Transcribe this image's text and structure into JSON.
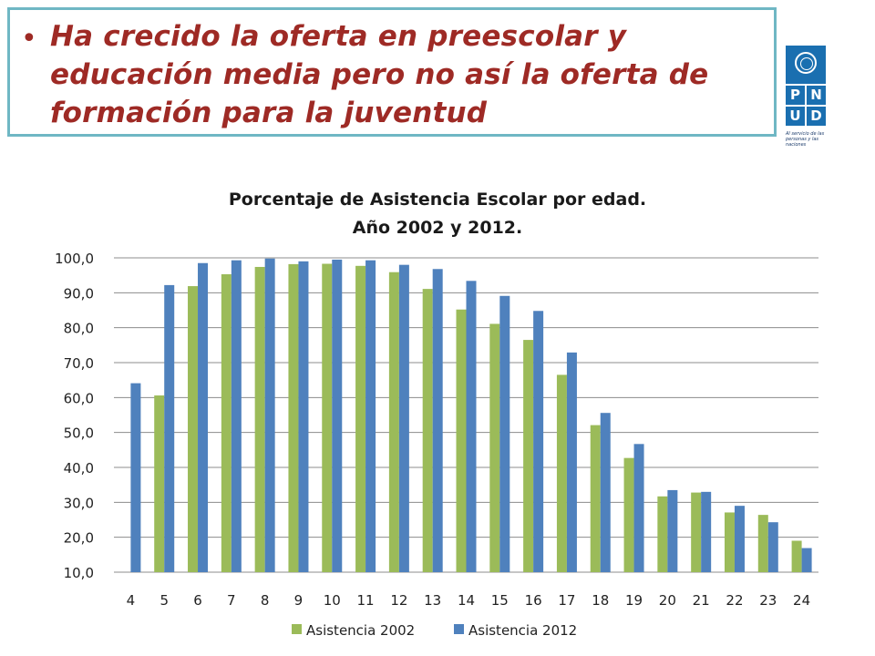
{
  "headline": {
    "bullet": "•",
    "text": "Ha crecido la oferta en preescolar y educación media pero no así la oferta de formación para la juventud"
  },
  "logo": {
    "letters": [
      "P",
      "N",
      "U",
      "D"
    ],
    "tagline": "Al servicio de las personas y las naciones",
    "colors": {
      "brand": "#1a6fb0"
    }
  },
  "chart_data": {
    "type": "bar",
    "title": "Porcentaje de Asistencia Escolar por edad.",
    "subtitle": "Año 2002 y 2012.",
    "categories": [
      "4",
      "5",
      "6",
      "7",
      "8",
      "9",
      "10",
      "11",
      "12",
      "13",
      "14",
      "15",
      "16",
      "17",
      "18",
      "19",
      "20",
      "21",
      "22",
      "23",
      "24"
    ],
    "series": [
      {
        "name": "Asistencia 2002",
        "color": "#9bbb59",
        "values": [
          null,
          60.6,
          91.9,
          95.3,
          97.4,
          98.2,
          98.3,
          97.7,
          95.9,
          91.1,
          85.2,
          81.1,
          76.5,
          66.5,
          52.1,
          42.7,
          31.7,
          32.8,
          27.1,
          26.4,
          19.0
        ]
      },
      {
        "name": "Asistencia 2012",
        "color": "#4f81bd",
        "values": [
          64.1,
          92.2,
          98.5,
          99.3,
          99.8,
          99.0,
          99.5,
          99.3,
          98.0,
          96.8,
          93.4,
          89.1,
          84.8,
          72.9,
          55.6,
          46.7,
          33.5,
          33.0,
          29.0,
          24.3,
          16.9
        ]
      }
    ],
    "ylim": [
      10,
      100
    ],
    "yticks": [
      "10,0",
      "20,0",
      "30,0",
      "40,0",
      "50,0",
      "60,0",
      "70,0",
      "80,0",
      "90,0",
      "100,0"
    ],
    "ytick_values": [
      10,
      20,
      30,
      40,
      50,
      60,
      70,
      80,
      90,
      100
    ],
    "grid": true,
    "legend_position": "bottom"
  }
}
